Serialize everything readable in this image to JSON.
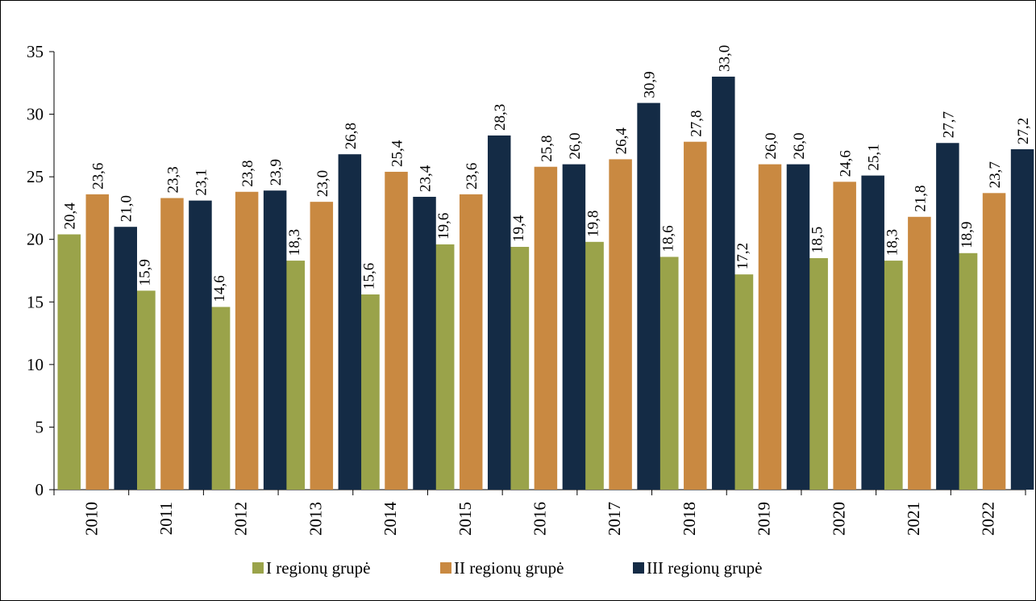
{
  "chart_data": {
    "type": "bar",
    "title": "",
    "xlabel": "",
    "ylabel": "",
    "ylim": [
      0,
      35
    ],
    "yticks": [
      0,
      5,
      10,
      15,
      20,
      25,
      30,
      35
    ],
    "grid": false,
    "legend_position": "bottom",
    "data_labels_rotated": true,
    "categories": [
      "2010",
      "2011",
      "2012",
      "2013",
      "2014",
      "2015",
      "2016",
      "2017",
      "2018",
      "2019",
      "2020",
      "2021",
      "2022"
    ],
    "series": [
      {
        "name": "I regionų grupė",
        "color": "#9aa34a",
        "values": [
          20.4,
          15.9,
          14.6,
          18.3,
          15.6,
          19.6,
          19.4,
          19.8,
          18.6,
          17.2,
          18.5,
          18.3,
          18.9
        ],
        "labels": [
          "20,4",
          "15,9",
          "14,6",
          "18,3",
          "15,6",
          "19,6",
          "19,4",
          "19,8",
          "18,6",
          "17,2",
          "18,5",
          "18,3",
          "18,9"
        ]
      },
      {
        "name": "II regionų grupė",
        "color": "#c98941",
        "values": [
          23.6,
          23.3,
          23.8,
          23.0,
          25.4,
          23.6,
          25.8,
          26.4,
          27.8,
          26.0,
          24.6,
          21.8,
          23.7
        ],
        "labels": [
          "23,6",
          "23,3",
          "23,8",
          "23,0",
          "25,4",
          "23,6",
          "25,8",
          "26,4",
          "27,8",
          "26,0",
          "24,6",
          "21,8",
          "23,7"
        ]
      },
      {
        "name": "III regionų grupė",
        "color": "#142b45",
        "values": [
          21.0,
          23.1,
          23.9,
          26.8,
          23.4,
          28.3,
          26.0,
          30.9,
          33.0,
          26.0,
          25.1,
          27.7,
          27.2
        ],
        "labels": [
          "21,0",
          "23,1",
          "23,9",
          "26,8",
          "23,4",
          "28,3",
          "26,0",
          "30,9",
          "33,0",
          "26,0",
          "25,1",
          "27,7",
          "27,2"
        ]
      }
    ]
  }
}
